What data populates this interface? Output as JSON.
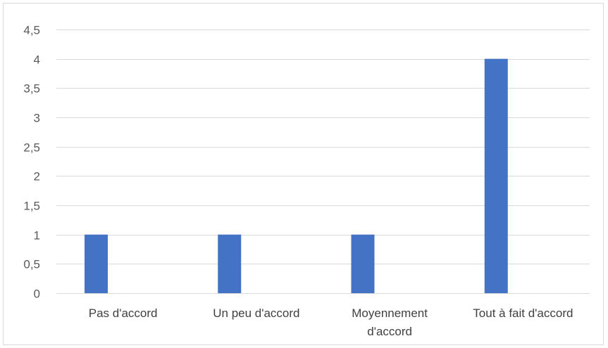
{
  "chart_data": {
    "type": "bar",
    "categories": [
      "Pas d'accord",
      "Un peu d'accord",
      "Moyennement d'accord",
      "Tout à fait d'accord"
    ],
    "category_label_lines": [
      [
        "Pas d'accord"
      ],
      [
        "Un peu d'accord"
      ],
      [
        "Moyennement",
        "d'accord"
      ],
      [
        "Tout à fait d'accord"
      ]
    ],
    "values": [
      1,
      1,
      1,
      4
    ],
    "ylim": [
      0,
      4.5
    ],
    "y_ticks": [
      "0",
      "0,5",
      "1",
      "1,5",
      "2",
      "2,5",
      "3",
      "3,5",
      "4",
      "4,5"
    ],
    "y_tick_values": [
      0,
      0.5,
      1,
      1.5,
      2,
      2.5,
      3,
      3.5,
      4,
      4.5
    ],
    "grid": true,
    "legend": "none",
    "title": "",
    "xlabel": "",
    "ylabel": "",
    "bar_color": "#4472C4"
  }
}
